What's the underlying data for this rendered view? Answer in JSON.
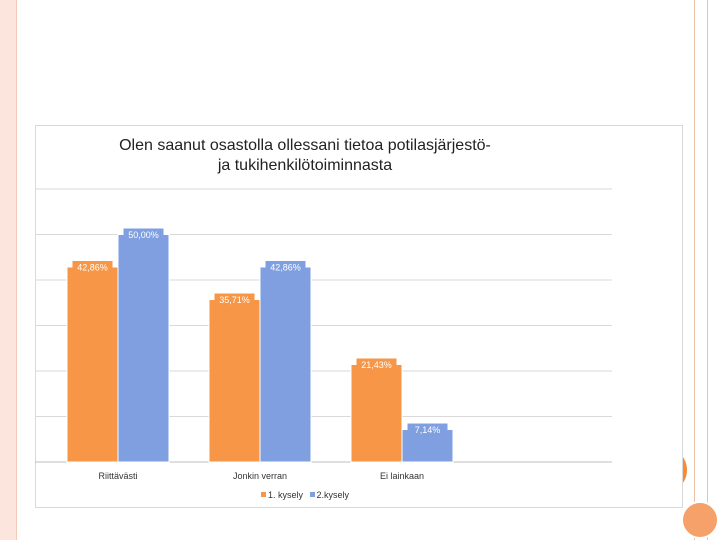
{
  "chart_data": {
    "type": "bar",
    "title_lines": [
      "Olen saanut osastolla ollessani tietoa potilasjärjestö-",
      "ja tukihenkilötoiminnasta"
    ],
    "categories": [
      "Riittävästi",
      "Jonkin verran",
      "Ei lainkaan"
    ],
    "series": [
      {
        "name": "1. kysely",
        "color": "#f79646",
        "values": [
          42.86,
          35.71,
          21.43
        ],
        "labels": [
          "42,86%",
          "35,71%",
          "21,43%"
        ]
      },
      {
        "name": "2.kysely",
        "color": "#7f9fe0",
        "values": [
          50.0,
          42.86,
          7.14
        ],
        "labels": [
          "50,00%",
          "42,86%",
          "7,14%"
        ]
      }
    ],
    "ylim": [
      0,
      60
    ],
    "grid": true,
    "legend_position": "bottom"
  }
}
